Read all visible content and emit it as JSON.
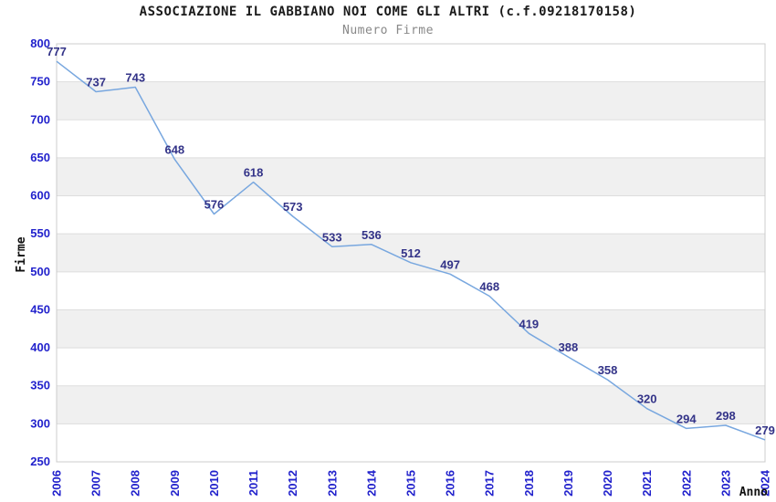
{
  "header": {
    "title": "ASSOCIAZIONE IL GABBIANO NOI COME GLI ALTRI (c.f.09218170158)",
    "subtitle": "Numero Firme"
  },
  "chart_data": {
    "type": "line",
    "title": "ASSOCIAZIONE IL GABBIANO NOI COME GLI ALTRI (c.f.09218170158)",
    "subtitle": "Numero Firme",
    "xlabel": "Anno",
    "ylabel": "Firme",
    "categories": [
      "2006",
      "2007",
      "2008",
      "2009",
      "2010",
      "2011",
      "2012",
      "2013",
      "2014",
      "2015",
      "2016",
      "2017",
      "2018",
      "2019",
      "2020",
      "2021",
      "2022",
      "2023",
      "2024"
    ],
    "series": [
      {
        "name": "Numero Firme",
        "values": [
          777,
          737,
          743,
          648,
          576,
          618,
          573,
          533,
          536,
          512,
          497,
          468,
          419,
          388,
          358,
          320,
          294,
          298,
          279
        ]
      }
    ],
    "ylim": [
      250,
      800
    ],
    "ytick_step": 50,
    "grid": "alternating-horizontal-bands",
    "legend_position": "none",
    "point_labels_visible": true,
    "x_labels_rotation": -90,
    "colors": {
      "line": "#78A7DF",
      "point_label": "#333388",
      "axis_tick_label": "#2222CC",
      "band": "#F0F0F0",
      "gridline": "#DDDDDD",
      "plot_border": "#CCCCCC",
      "title": "#1A1A1A",
      "subtitle": "#888888",
      "axis_title": "#111111",
      "background": "#FFFFFF"
    }
  }
}
